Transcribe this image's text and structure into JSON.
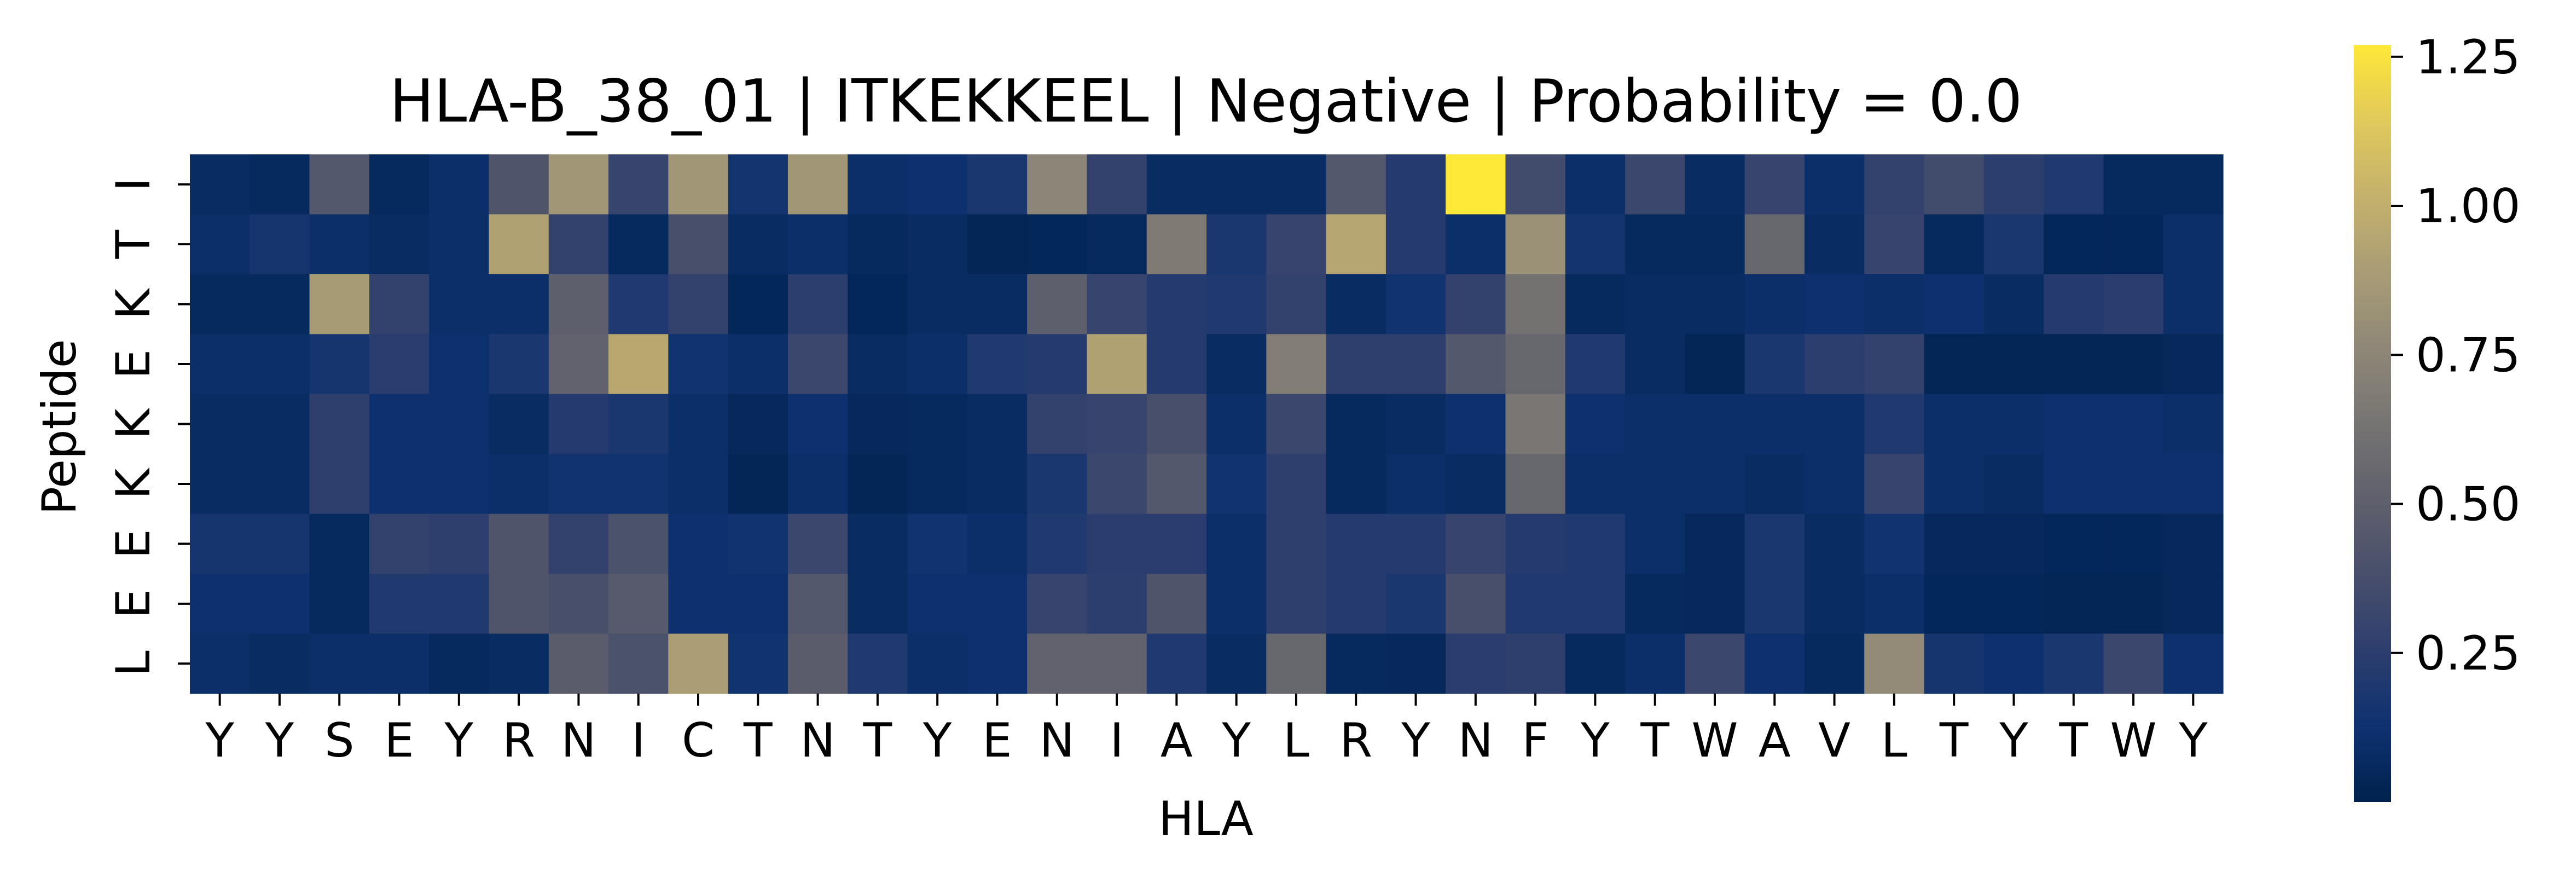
{
  "chart_data": {
    "type": "heatmap",
    "title": "HLA-B_38_01 | ITKEKKEEL | Negative | Probability = 0.0",
    "xlabel": "HLA",
    "ylabel": "Peptide",
    "x_categories": [
      "Y",
      "Y",
      "S",
      "E",
      "Y",
      "R",
      "N",
      "I",
      "C",
      "T",
      "N",
      "T",
      "Y",
      "E",
      "N",
      "I",
      "A",
      "Y",
      "L",
      "R",
      "Y",
      "N",
      "F",
      "Y",
      "T",
      "W",
      "A",
      "V",
      "L",
      "T",
      "Y",
      "T",
      "W",
      "Y"
    ],
    "y_categories": [
      "I",
      "T",
      "K",
      "E",
      "K",
      "K",
      "E",
      "E",
      "L"
    ],
    "colormap": "cividis",
    "vmin": 0.0,
    "vmax": 1.27,
    "colorbar_ticks": [
      0.25,
      0.5,
      0.75,
      1.0,
      1.25
    ],
    "colorbar_tick_labels": [
      "0.25",
      "0.50",
      "0.75",
      "1.00",
      "1.25"
    ],
    "values": [
      [
        0.08,
        0.06,
        0.45,
        0.06,
        0.1,
        0.42,
        0.85,
        0.3,
        0.85,
        0.15,
        0.85,
        0.1,
        0.12,
        0.18,
        0.75,
        0.28,
        0.08,
        0.08,
        0.08,
        0.45,
        0.22,
        1.27,
        0.35,
        0.1,
        0.32,
        0.08,
        0.3,
        0.1,
        0.28,
        0.35,
        0.25,
        0.2,
        0.06,
        0.06
      ],
      [
        0.1,
        0.16,
        0.1,
        0.08,
        0.1,
        0.92,
        0.28,
        0.06,
        0.38,
        0.08,
        0.1,
        0.06,
        0.08,
        0.03,
        0.04,
        0.06,
        0.68,
        0.18,
        0.3,
        0.95,
        0.22,
        0.1,
        0.82,
        0.15,
        0.06,
        0.06,
        0.55,
        0.08,
        0.3,
        0.06,
        0.18,
        0.04,
        0.04,
        0.1
      ],
      [
        0.06,
        0.06,
        0.88,
        0.28,
        0.1,
        0.1,
        0.5,
        0.2,
        0.28,
        0.04,
        0.25,
        0.04,
        0.08,
        0.08,
        0.5,
        0.3,
        0.22,
        0.2,
        0.28,
        0.08,
        0.14,
        0.28,
        0.62,
        0.06,
        0.08,
        0.08,
        0.1,
        0.12,
        0.1,
        0.12,
        0.08,
        0.22,
        0.24,
        0.1
      ],
      [
        0.1,
        0.1,
        0.16,
        0.24,
        0.12,
        0.18,
        0.52,
        0.96,
        0.14,
        0.1,
        0.32,
        0.08,
        0.1,
        0.2,
        0.22,
        0.92,
        0.22,
        0.08,
        0.7,
        0.26,
        0.26,
        0.45,
        0.55,
        0.2,
        0.08,
        0.03,
        0.18,
        0.25,
        0.28,
        0.03,
        0.03,
        0.03,
        0.03,
        0.05
      ],
      [
        0.08,
        0.08,
        0.26,
        0.12,
        0.12,
        0.08,
        0.22,
        0.18,
        0.1,
        0.05,
        0.12,
        0.05,
        0.06,
        0.08,
        0.28,
        0.3,
        0.38,
        0.1,
        0.32,
        0.06,
        0.08,
        0.12,
        0.65,
        0.12,
        0.1,
        0.1,
        0.1,
        0.1,
        0.2,
        0.1,
        0.1,
        0.12,
        0.12,
        0.1
      ],
      [
        0.08,
        0.08,
        0.26,
        0.12,
        0.12,
        0.1,
        0.14,
        0.14,
        0.1,
        0.03,
        0.1,
        0.03,
        0.06,
        0.08,
        0.18,
        0.32,
        0.45,
        0.14,
        0.26,
        0.06,
        0.1,
        0.08,
        0.55,
        0.1,
        0.1,
        0.1,
        0.08,
        0.1,
        0.3,
        0.1,
        0.08,
        0.12,
        0.12,
        0.12
      ],
      [
        0.16,
        0.16,
        0.06,
        0.28,
        0.26,
        0.42,
        0.28,
        0.4,
        0.12,
        0.14,
        0.32,
        0.08,
        0.14,
        0.1,
        0.2,
        0.24,
        0.24,
        0.1,
        0.26,
        0.22,
        0.22,
        0.3,
        0.22,
        0.2,
        0.1,
        0.05,
        0.18,
        0.08,
        0.14,
        0.05,
        0.05,
        0.04,
        0.04,
        0.05
      ],
      [
        0.12,
        0.12,
        0.06,
        0.2,
        0.2,
        0.42,
        0.38,
        0.46,
        0.12,
        0.12,
        0.45,
        0.08,
        0.12,
        0.12,
        0.3,
        0.25,
        0.42,
        0.1,
        0.26,
        0.22,
        0.18,
        0.38,
        0.2,
        0.2,
        0.06,
        0.05,
        0.18,
        0.08,
        0.1,
        0.04,
        0.04,
        0.03,
        0.03,
        0.05
      ],
      [
        0.1,
        0.08,
        0.1,
        0.1,
        0.06,
        0.08,
        0.48,
        0.4,
        0.9,
        0.14,
        0.48,
        0.2,
        0.1,
        0.12,
        0.52,
        0.52,
        0.2,
        0.08,
        0.55,
        0.06,
        0.05,
        0.24,
        0.26,
        0.06,
        0.1,
        0.32,
        0.12,
        0.06,
        0.78,
        0.16,
        0.12,
        0.18,
        0.32,
        0.12
      ]
    ]
  }
}
